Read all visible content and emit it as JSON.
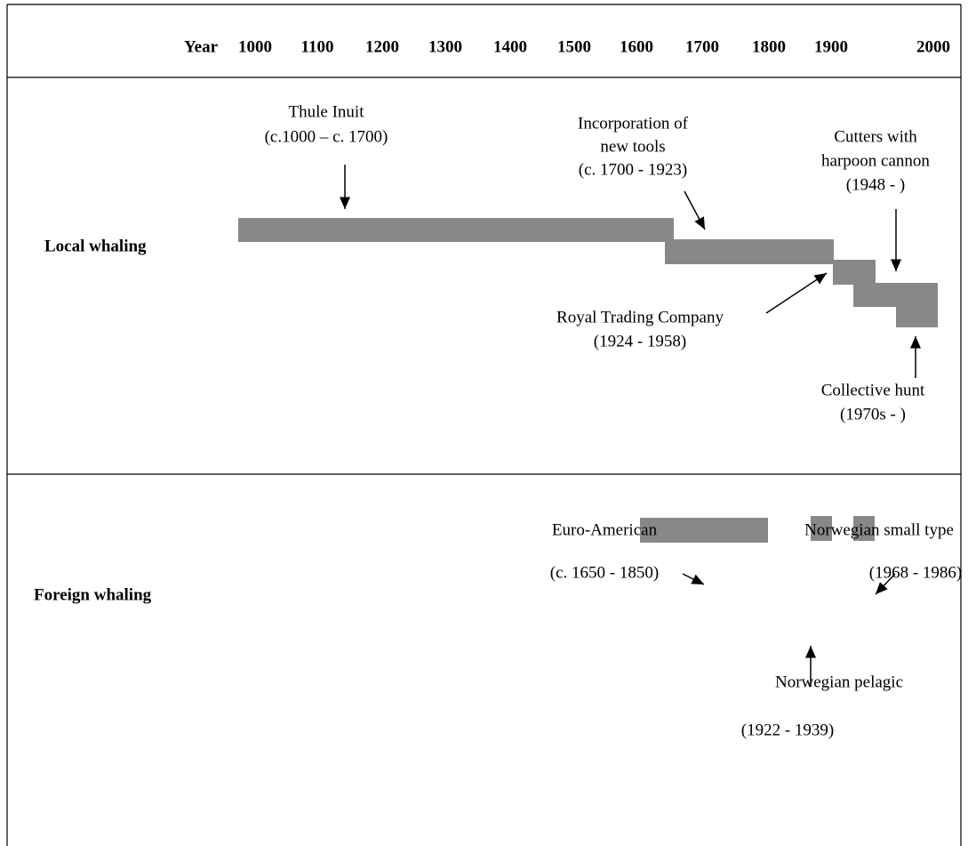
{
  "header": {
    "label": "Year",
    "years": [
      "1000",
      "1100",
      "1200",
      "1300",
      "1400",
      "1500",
      "1600",
      "1700",
      "1800",
      "1900",
      "2000"
    ]
  },
  "sections": [
    {
      "label": "Local whaling",
      "items": [
        {
          "lines": [
            "Thule Inuit",
            "(c.1000 – c. 1700)"
          ]
        },
        {
          "lines": [
            "Incorporation of",
            "new tools",
            "(c. 1700 - 1923)"
          ]
        },
        {
          "lines": [
            "Cutters with",
            "harpoon cannon",
            "(1948 - )"
          ]
        },
        {
          "lines": [
            "Royal Trading Company",
            "(1924 - 1958)"
          ]
        },
        {
          "lines": [
            "Collective hunt",
            "(1970s - )"
          ]
        }
      ]
    },
    {
      "label": "Foreign whaling",
      "items": [
        {
          "lines": [
            "Euro-American",
            "(c. 1650 - 1850)"
          ]
        },
        {
          "lines": [
            "Norwegian small type",
            "(1968 - 1986)"
          ]
        },
        {
          "lines": [
            "Norwegian pelagic",
            "(1922 - 1939)"
          ]
        }
      ]
    }
  ]
}
